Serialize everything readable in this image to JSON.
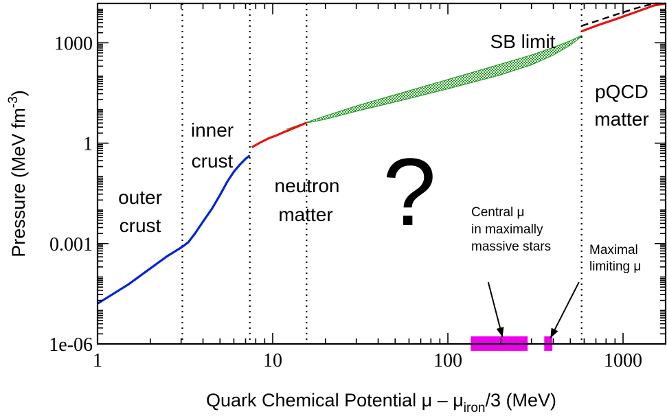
{
  "chart_data": {
    "type": "line",
    "title": "",
    "xlabel": "Quark Chemical Potential μ – μ",
    "xlabel_subscript": "iron",
    "xlabel_suffix": "/3 (MeV)",
    "ylabel": "Pressure (MeV fm",
    "ylabel_superscript": "-3",
    "ylabel_suffix": ")",
    "xscale": "log",
    "yscale": "log",
    "xlim": [
      1,
      1750
    ],
    "ylim": [
      1e-06,
      15000
    ],
    "grid": false,
    "x_ticks": [
      {
        "value": 1,
        "label": "1"
      },
      {
        "value": 10,
        "label": "10"
      },
      {
        "value": 100,
        "label": "100"
      },
      {
        "value": 1000,
        "label": "1000"
      }
    ],
    "y_ticks": [
      {
        "value": 1e-06,
        "label": "1e-06"
      },
      {
        "value": 0.001,
        "label": "0.001"
      },
      {
        "value": 1,
        "label": "1"
      },
      {
        "value": 1000,
        "label": "1000"
      }
    ],
    "boundaries": [
      3.05,
      7.4,
      15.6,
      580
    ],
    "series": [
      {
        "id": "outer-crust",
        "color": "#0022dd",
        "style": "solid",
        "x": [
          1.0,
          1.5,
          2.0,
          2.5,
          3.05
        ],
        "y": [
          1.6e-05,
          6e-05,
          0.00018,
          0.00042,
          0.0008
        ]
      },
      {
        "id": "inner-crust",
        "color": "#0022dd",
        "style": "solid",
        "x": [
          3.05,
          3.3,
          3.6,
          4.0,
          4.5,
          5.0,
          5.5,
          6.0,
          6.5,
          7.0,
          7.4
        ],
        "y": [
          0.0008,
          0.0011,
          0.002,
          0.0045,
          0.011,
          0.028,
          0.07,
          0.14,
          0.23,
          0.34,
          0.43
        ]
      },
      {
        "id": "neutron-matter",
        "color": "#ee1111",
        "style": "solid",
        "x": [
          7.6,
          8.5,
          9.5,
          10.5,
          11.5,
          12.5,
          14.0,
          15.6
        ],
        "y": [
          0.75,
          1.05,
          1.4,
          1.7,
          2.1,
          2.5,
          3.2,
          4.1
        ]
      },
      {
        "id": "pqcd-matter",
        "color": "#ee1111",
        "style": "solid",
        "x": [
          580,
          700,
          900,
          1200,
          1500,
          1750
        ],
        "y": [
          2200,
          3200,
          5000,
          8500,
          13000,
          17500
        ]
      },
      {
        "id": "sb-limit",
        "color": "#000000",
        "style": "dashed",
        "x": [
          580,
          700,
          900,
          1200,
          1500,
          1750
        ],
        "y": [
          3200,
          4400,
          6800,
          11000,
          16000,
          21000
        ]
      }
    ],
    "band": {
      "id": "interpolation-band",
      "color": "#2a9a2a",
      "x": [
        12.0,
        15.6,
        20,
        30,
        50,
        100,
        200,
        300,
        400,
        500,
        580
      ],
      "lower": [
        2.6,
        4.0,
        5.2,
        9.0,
        17,
        42,
        110,
        220,
        430,
        850,
        1550
      ],
      "upper": [
        2.6,
        4.2,
        6.5,
        13,
        28,
        80,
        230,
        430,
        730,
        1150,
        1650
      ]
    },
    "markers": [
      {
        "id": "central-mu",
        "color": "#ee00ee",
        "x_range": [
          135,
          285
        ]
      },
      {
        "id": "maximal-limiting-mu",
        "color": "#ee00ee",
        "x_range": [
          355,
          395
        ]
      }
    ],
    "arrows": [
      {
        "id": "central-mu-arrow",
        "from": [
          170,
          7e-05
        ],
        "to": [
          205,
          1.6e-06
        ]
      },
      {
        "id": "maximal-mu-arrow",
        "from": [
          560,
          7e-05
        ],
        "to": [
          385,
          1.5e-06
        ]
      }
    ]
  },
  "annotations": {
    "outer_crust_1": "outer",
    "outer_crust_2": "crust",
    "inner_crust_1": "inner",
    "inner_crust_2": "crust",
    "neutron_matter_1": "neutron",
    "neutron_matter_2": "matter",
    "question": "?",
    "sb_limit": "SB limit",
    "pqcd_1": "pQCD",
    "pqcd_2": "matter",
    "central_mu_1": "Central μ",
    "central_mu_2": "in maximally",
    "central_mu_3": "massive stars",
    "maximal_mu_1": "Maximal",
    "maximal_mu_2": "limiting μ"
  }
}
